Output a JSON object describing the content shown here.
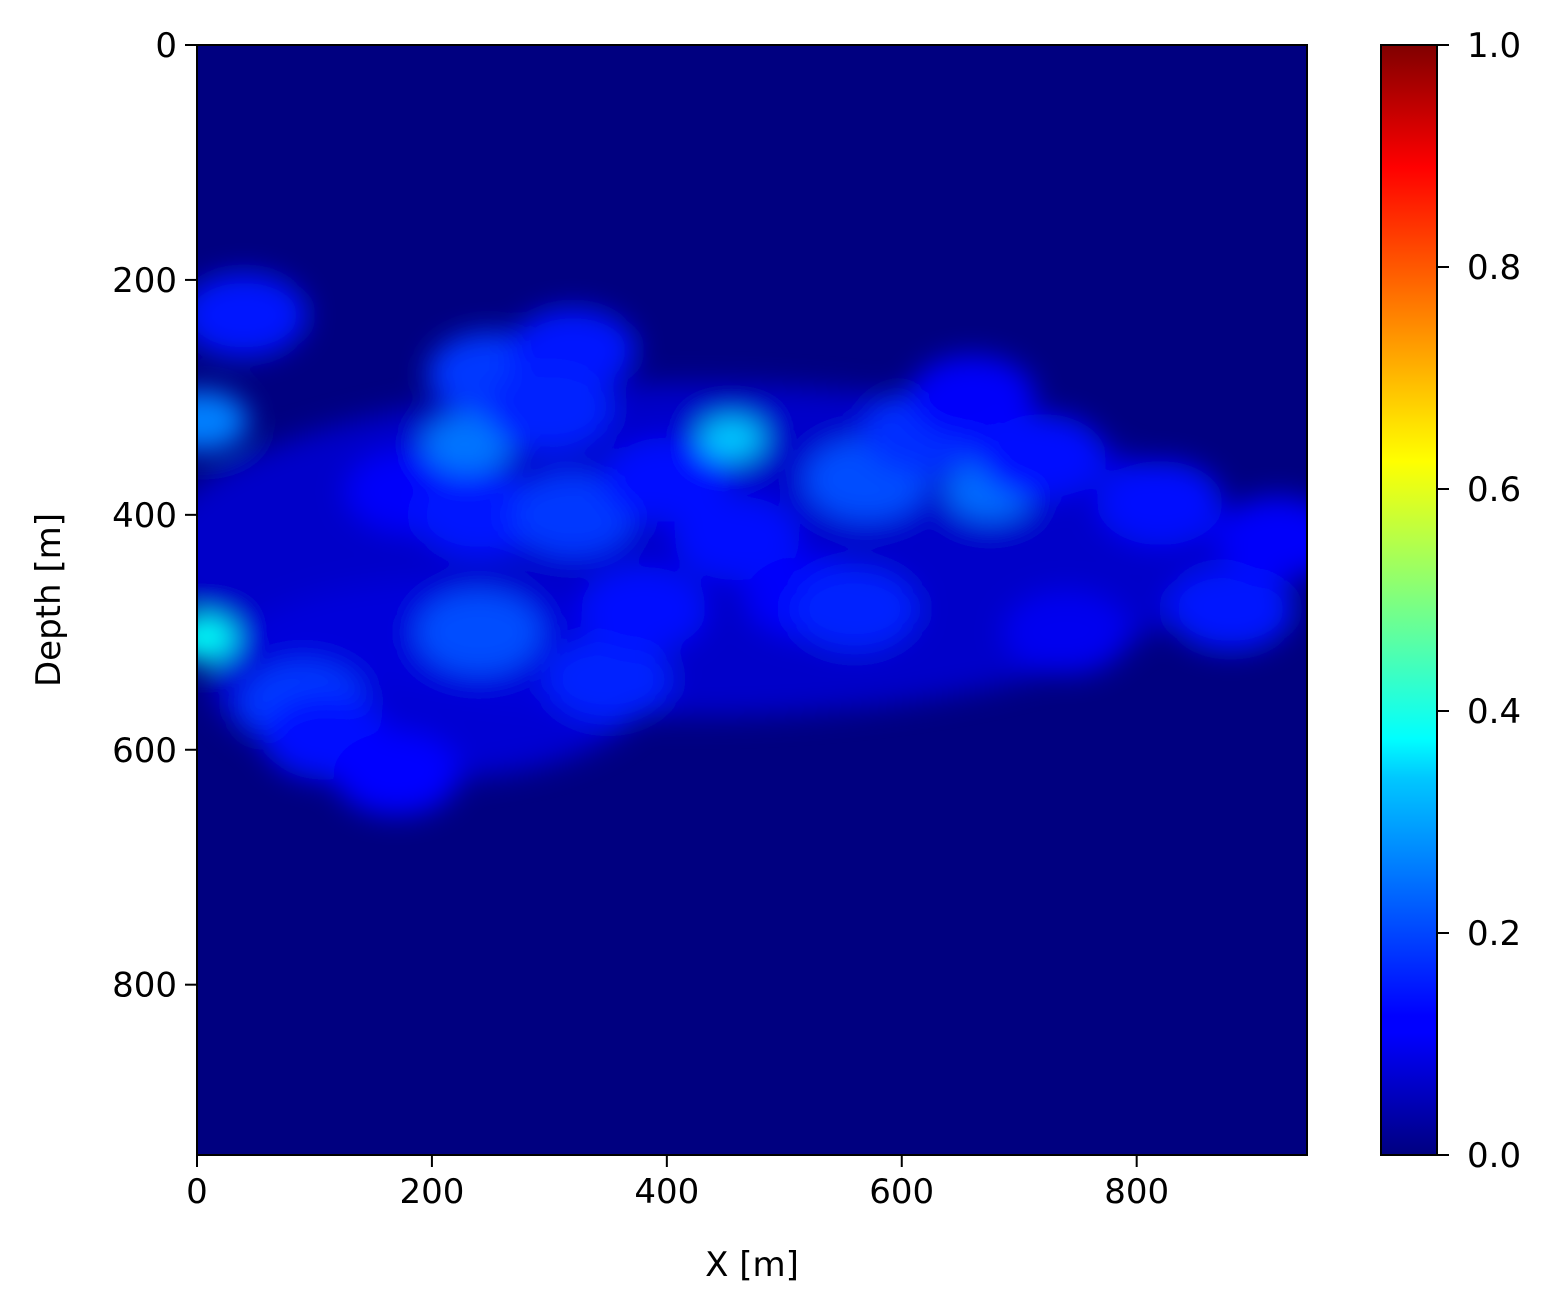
{
  "chart_data": {
    "type": "heatmap",
    "title": "",
    "xlabel": "X [m]",
    "ylabel": "Depth [m]",
    "xlim": [
      0,
      945
    ],
    "ylim": [
      945,
      0
    ],
    "x_ticks": [
      0,
      200,
      400,
      600,
      800
    ],
    "y_ticks": [
      0,
      200,
      400,
      600,
      800
    ],
    "colormap": "jet",
    "colorbar": {
      "range": [
        0.0,
        1.0
      ],
      "ticks": [
        "0.0",
        "0.2",
        "0.4",
        "0.6",
        "0.8",
        "1.0"
      ]
    },
    "value_range_shown": [
      0.0,
      0.4
    ],
    "features": [
      {
        "x": 5,
        "z": 505,
        "value": 0.38
      },
      {
        "x": 5,
        "z": 320,
        "value": 0.25
      },
      {
        "x": 40,
        "z": 230,
        "value": 0.15
      },
      {
        "x": 90,
        "z": 560,
        "value": 0.18
      },
      {
        "x": 110,
        "z": 590,
        "value": 0.14
      },
      {
        "x": 170,
        "z": 620,
        "value": 0.13
      },
      {
        "x": 180,
        "z": 380,
        "value": 0.12
      },
      {
        "x": 230,
        "z": 340,
        "value": 0.24
      },
      {
        "x": 240,
        "z": 400,
        "value": 0.15
      },
      {
        "x": 240,
        "z": 500,
        "value": 0.2
      },
      {
        "x": 250,
        "z": 280,
        "value": 0.18
      },
      {
        "x": 320,
        "z": 260,
        "value": 0.15
      },
      {
        "x": 300,
        "z": 310,
        "value": 0.16
      },
      {
        "x": 320,
        "z": 400,
        "value": 0.18
      },
      {
        "x": 350,
        "z": 540,
        "value": 0.16
      },
      {
        "x": 380,
        "z": 480,
        "value": 0.14
      },
      {
        "x": 400,
        "z": 370,
        "value": 0.14
      },
      {
        "x": 455,
        "z": 335,
        "value": 0.32
      },
      {
        "x": 460,
        "z": 420,
        "value": 0.14
      },
      {
        "x": 520,
        "z": 470,
        "value": 0.12
      },
      {
        "x": 560,
        "z": 480,
        "value": 0.16
      },
      {
        "x": 570,
        "z": 370,
        "value": 0.2
      },
      {
        "x": 620,
        "z": 330,
        "value": 0.17
      },
      {
        "x": 660,
        "z": 300,
        "value": 0.12
      },
      {
        "x": 675,
        "z": 380,
        "value": 0.23
      },
      {
        "x": 720,
        "z": 350,
        "value": 0.14
      },
      {
        "x": 740,
        "z": 500,
        "value": 0.11
      },
      {
        "x": 820,
        "z": 390,
        "value": 0.14
      },
      {
        "x": 880,
        "z": 480,
        "value": 0.15
      },
      {
        "x": 920,
        "z": 420,
        "value": 0.12
      }
    ]
  },
  "colors": {
    "background": "#000080",
    "axis": "#000000"
  }
}
